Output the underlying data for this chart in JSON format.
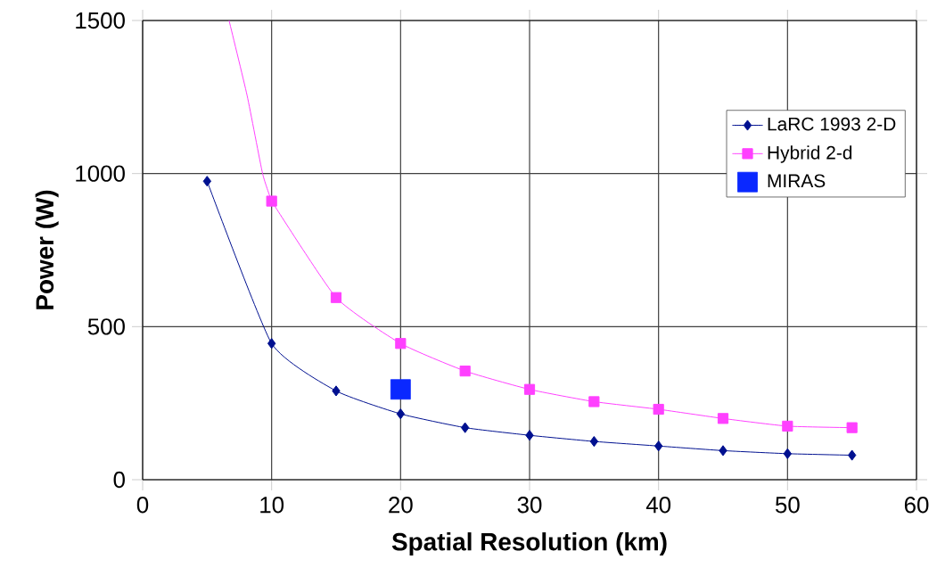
{
  "chart_data": {
    "type": "line",
    "xlabel": "Spatial Resolution (km)",
    "ylabel": "Power (W)",
    "xlim": [
      0,
      60
    ],
    "xticks": [
      0,
      10,
      20,
      30,
      40,
      50,
      60
    ],
    "ylim": [
      0,
      1500
    ],
    "yticks": [
      0,
      500,
      1000,
      1500
    ],
    "grid": true,
    "legend": "right",
    "series": [
      {
        "name": "LaRC 1993 2-D",
        "color": "#001090",
        "marker": "diamond",
        "x": [
          5,
          10,
          15,
          20,
          25,
          30,
          35,
          40,
          45,
          50,
          55
        ],
        "values": [
          975,
          445,
          290,
          215,
          170,
          145,
          125,
          110,
          95,
          85,
          80
        ]
      },
      {
        "name": "Hybrid 2-d",
        "color": "#ff40ff",
        "marker": "square",
        "x": [
          10,
          15,
          20,
          25,
          30,
          35,
          40,
          45,
          50,
          55
        ],
        "values": [
          910,
          595,
          445,
          355,
          295,
          255,
          230,
          200,
          175,
          170
        ]
      },
      {
        "color": "#ff40ff",
        "marker": "none",
        "x": [
          6.7,
          8.1,
          9.3,
          10
        ],
        "values": [
          1500,
          1255,
          1000,
          910
        ]
      },
      {
        "name": "MIRAS",
        "type": "scatter",
        "color": "#0a28ff",
        "marker": "square",
        "x": [
          20
        ],
        "values": [
          295
        ]
      }
    ]
  }
}
